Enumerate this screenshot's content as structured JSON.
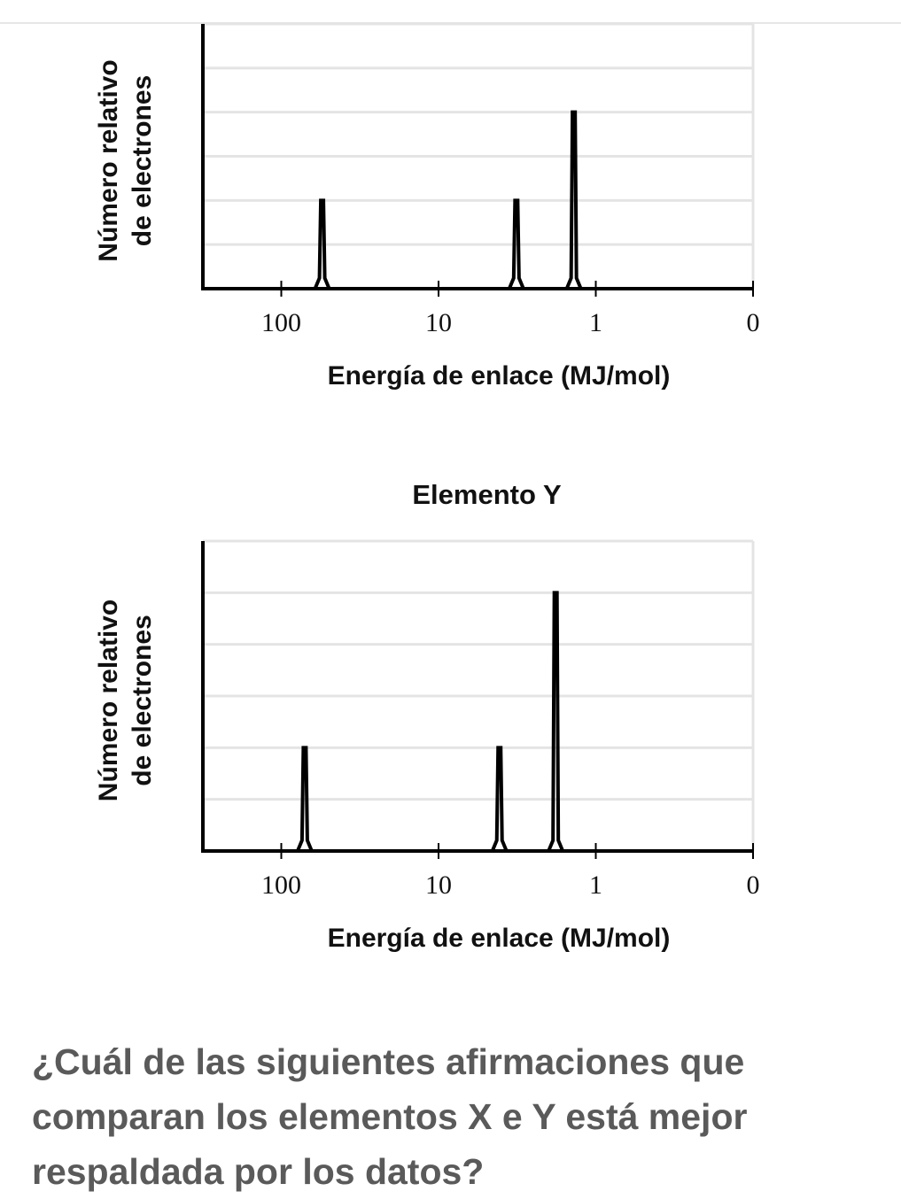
{
  "chart_data": [
    {
      "type": "line",
      "title": "",
      "xlabel": "Energía de enlace (MJ/mol)",
      "ylabel_lines": [
        "Número relativo",
        "de electrones"
      ],
      "x_scale": "log-reversed",
      "x_ticks": [
        "100",
        "10",
        "1",
        "0"
      ],
      "x_tick_values": [
        100,
        10,
        1,
        0.1
      ],
      "xlim": [
        150,
        0.1
      ],
      "ylim": [
        0,
        6
      ],
      "grid": true,
      "peaks": [
        {
          "energy": 55,
          "height": 2
        },
        {
          "energy": 3.2,
          "height": 2
        },
        {
          "energy": 1.38,
          "height": 4
        }
      ]
    },
    {
      "type": "line",
      "title": "Elemento Y",
      "xlabel": "Energía de enlace (MJ/mol)",
      "ylabel_lines": [
        "Número relativo",
        "de electrones"
      ],
      "x_scale": "log-reversed",
      "x_ticks": [
        "100",
        "10",
        "1",
        "0"
      ],
      "x_tick_values": [
        100,
        10,
        1,
        0.1
      ],
      "xlim": [
        150,
        0.1
      ],
      "ylim": [
        0,
        6
      ],
      "grid": true,
      "peaks": [
        {
          "energy": 71,
          "height": 2
        },
        {
          "energy": 4.1,
          "height": 2
        },
        {
          "energy": 1.8,
          "height": 5
        }
      ]
    }
  ],
  "question": {
    "text": "¿Cuál de las siguientes afirmaciones que comparan los elementos X e Y está mejor respaldada por los datos?"
  }
}
